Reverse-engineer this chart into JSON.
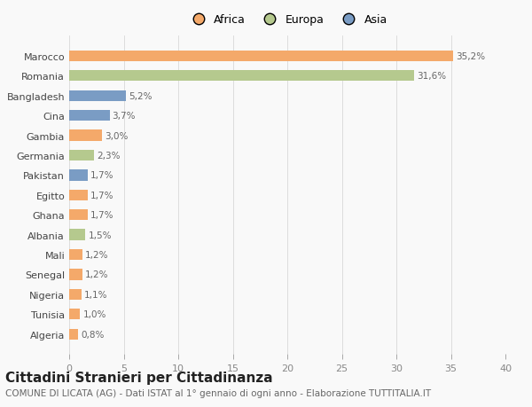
{
  "countries": [
    "Algeria",
    "Tunisia",
    "Nigeria",
    "Senegal",
    "Mali",
    "Albania",
    "Ghana",
    "Egitto",
    "Pakistan",
    "Germania",
    "Gambia",
    "Cina",
    "Bangladesh",
    "Romania",
    "Marocco"
  ],
  "values": [
    0.8,
    1.0,
    1.1,
    1.2,
    1.2,
    1.5,
    1.7,
    1.7,
    1.7,
    2.3,
    3.0,
    3.7,
    5.2,
    31.6,
    35.2
  ],
  "labels": [
    "0,8%",
    "1,0%",
    "1,1%",
    "1,2%",
    "1,2%",
    "1,5%",
    "1,7%",
    "1,7%",
    "1,7%",
    "2,3%",
    "3,0%",
    "3,7%",
    "5,2%",
    "31,6%",
    "35,2%"
  ],
  "continents": [
    "Africa",
    "Africa",
    "Africa",
    "Africa",
    "Africa",
    "Europa",
    "Africa",
    "Africa",
    "Asia",
    "Europa",
    "Africa",
    "Asia",
    "Asia",
    "Europa",
    "Africa"
  ],
  "colors": {
    "Africa": "#F4A96A",
    "Europa": "#B5C98E",
    "Asia": "#7A9CC4"
  },
  "legend_order": [
    "Africa",
    "Europa",
    "Asia"
  ],
  "xlim": [
    0,
    40
  ],
  "xticks": [
    0,
    5,
    10,
    15,
    20,
    25,
    30,
    35,
    40
  ],
  "title": "Cittadini Stranieri per Cittadinanza",
  "subtitle": "COMUNE DI LICATA (AG) - Dati ISTAT al 1° gennaio di ogni anno - Elaborazione TUTTITALIA.IT",
  "background_color": "#f9f9f9",
  "bar_height": 0.55,
  "title_fontsize": 11,
  "subtitle_fontsize": 7.5,
  "label_fontsize": 7.5,
  "ytick_fontsize": 8,
  "xtick_fontsize": 8,
  "legend_fontsize": 9
}
